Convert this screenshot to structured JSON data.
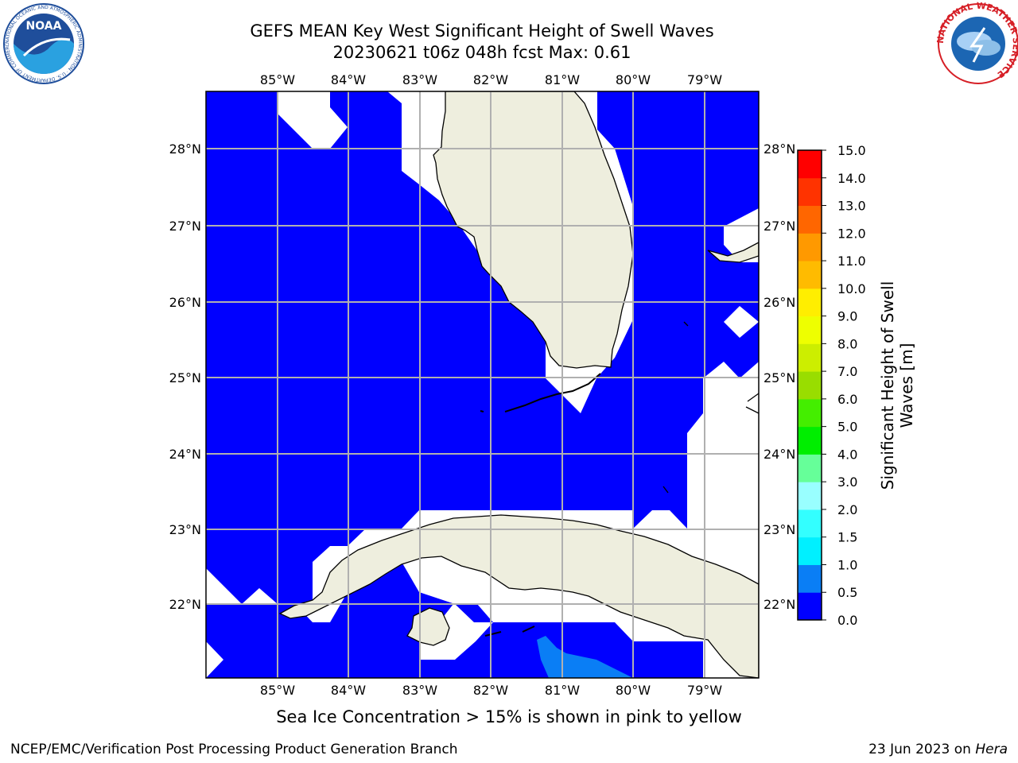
{
  "header": {
    "title_line1": "GEFS MEAN Key West Significant Height of Swell Waves",
    "title_line2": "20230621 t06z 048h fcst   Max: 0.61"
  },
  "logos": {
    "noaa_text": "NOAA",
    "noaa_ring_text": "NATIONAL OCEANIC AND ATMOSPHERIC ADMINISTRATION · U.S. DEPARTMENT OF COMMERCE",
    "nws_ring_text": "NATIONAL WEATHER SERVICE"
  },
  "map": {
    "lon_labels": [
      "85°W",
      "84°W",
      "83°W",
      "82°W",
      "81°W",
      "80°W",
      "79°W"
    ],
    "lat_labels": [
      "28°N",
      "27°N",
      "26°N",
      "25°N",
      "24°N",
      "23°N",
      "22°N"
    ],
    "colors": {
      "ocean_low": "#0000ff",
      "ocean_0_5": "#0a7ef5",
      "land": "#eeeede",
      "grid": "#b0b0b0"
    }
  },
  "colorbar": {
    "title": "Significant Height of Swell Waves [m]",
    "title_line1": "Significant Height of Swell",
    "title_line2": "Waves [m]",
    "levels": [
      "0.0",
      "0.5",
      "1.0",
      "1.5",
      "2.0",
      "3.0",
      "4.0",
      "5.0",
      "6.0",
      "7.0",
      "8.0",
      "9.0",
      "10.0",
      "11.0",
      "12.0",
      "13.0",
      "14.0",
      "15.0"
    ],
    "colors": [
      "#0000ff",
      "#0a7ef5",
      "#00f0ff",
      "#33ffff",
      "#99ffff",
      "#66ff99",
      "#00ee00",
      "#44ee00",
      "#99dd00",
      "#ccee00",
      "#eeff00",
      "#ffee00",
      "#ffbb00",
      "#ff9900",
      "#ff6600",
      "#ff3300",
      "#ff0000"
    ]
  },
  "footer": {
    "note": "Sea Ice Concentration > 15% is shown in pink to yellow",
    "left": "NCEP/EMC/Verification Post Processing Product Generation Branch",
    "right_date": "23 Jun 2023 on ",
    "right_host": "Hera"
  }
}
